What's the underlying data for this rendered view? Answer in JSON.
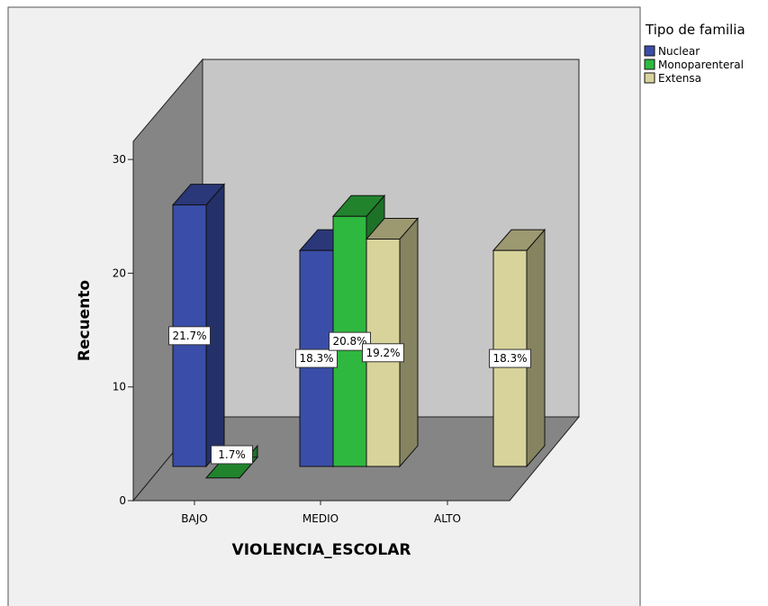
{
  "chart_data": {
    "type": "bar",
    "subtype": "3d-clustered",
    "xlabel": "VIOLENCIA_ESCOLAR",
    "ylabel": "Recuento",
    "categories": [
      "BAJO",
      "MEDIO",
      "ALTO"
    ],
    "y_ticks": [
      "0",
      "10",
      "20",
      "30"
    ],
    "ylim": [
      0,
      30
    ],
    "legend": {
      "title": "Tipo de familia",
      "placement": "right"
    },
    "series": [
      {
        "name": "Nuclear",
        "color": "#3A4DA8",
        "values": [
          26,
          22,
          null
        ],
        "labels": [
          "21.7%",
          "18.3%",
          ""
        ]
      },
      {
        "name": "Monoparenteral",
        "color": "#2EB83F",
        "values": [
          2,
          25,
          null
        ],
        "labels": [
          "1.7%",
          "20.8%",
          ""
        ]
      },
      {
        "name": "Extensa",
        "color": "#D8D39B",
        "values": [
          null,
          23,
          22
        ],
        "labels": [
          "",
          "19.2%",
          "18.3%"
        ]
      }
    ]
  }
}
